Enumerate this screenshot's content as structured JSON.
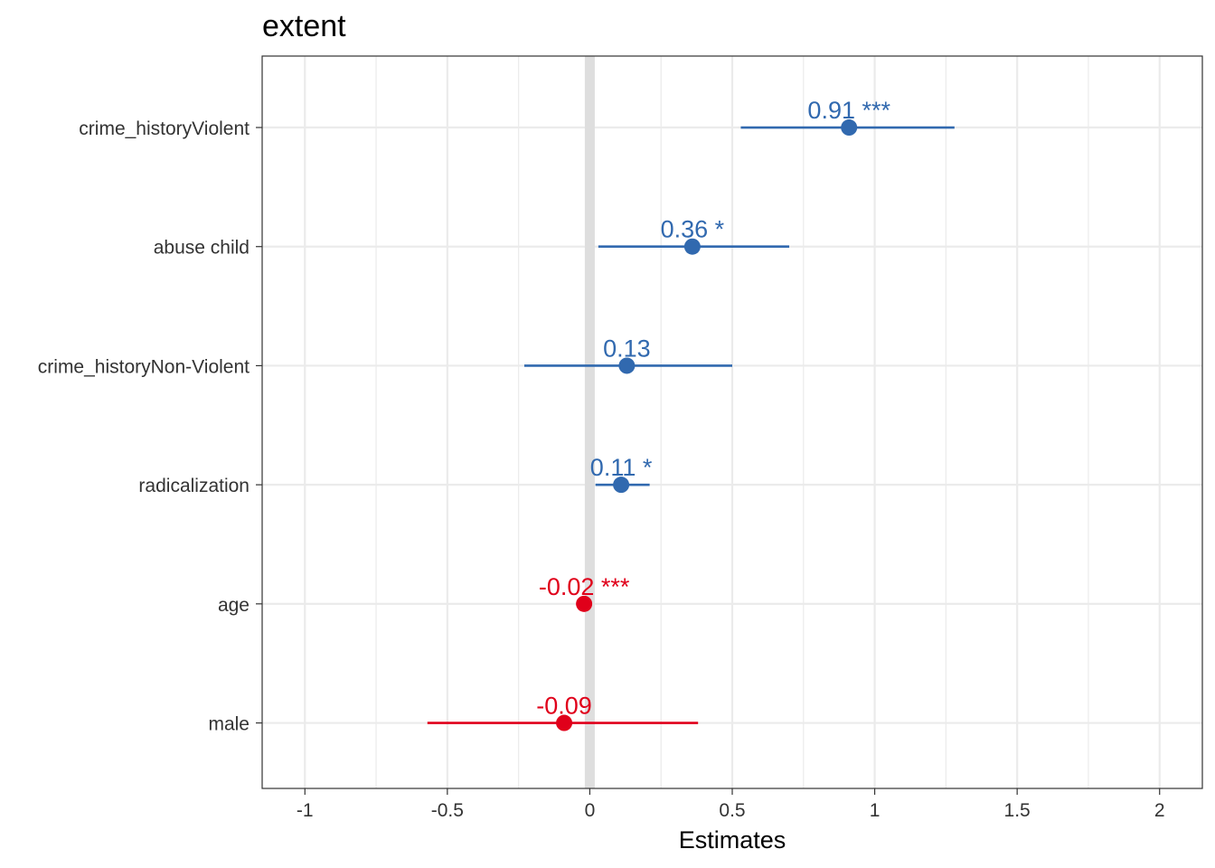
{
  "chart_data": {
    "type": "forest",
    "title": "extent",
    "xlabel": "Estimates",
    "ylabel": "",
    "xlim": [
      -1.15,
      2.15
    ],
    "x_ticks": [
      -1,
      -0.5,
      0,
      0.5,
      1,
      1.5,
      2
    ],
    "x_tick_labels": [
      "-1",
      "-0.5",
      "0",
      "0.5",
      "1",
      "1.5",
      "2"
    ],
    "grid": true,
    "reference_line": 0,
    "colors": {
      "positive": "#3169AF",
      "negative": "#E0001A",
      "grid": "#EBEBEB",
      "reference": "#DEDEDE"
    },
    "terms": [
      {
        "name": "crime_historyViolent",
        "estimate": 0.91,
        "ci_low": 0.53,
        "ci_high": 1.28,
        "label": "0.91 ***",
        "sign": "positive"
      },
      {
        "name": "abuse child",
        "estimate": 0.36,
        "ci_low": 0.03,
        "ci_high": 0.7,
        "label": "0.36 *",
        "sign": "positive"
      },
      {
        "name": "crime_historyNon-Violent",
        "estimate": 0.13,
        "ci_low": -0.23,
        "ci_high": 0.5,
        "label": "0.13",
        "sign": "positive"
      },
      {
        "name": "radicalization",
        "estimate": 0.11,
        "ci_low": 0.02,
        "ci_high": 0.21,
        "label": "0.11 *",
        "sign": "positive"
      },
      {
        "name": "age",
        "estimate": -0.02,
        "ci_low": -0.03,
        "ci_high": -0.01,
        "label": "-0.02 ***",
        "sign": "negative"
      },
      {
        "name": "male",
        "estimate": -0.09,
        "ci_low": -0.57,
        "ci_high": 0.38,
        "label": "-0.09",
        "sign": "negative"
      }
    ]
  }
}
